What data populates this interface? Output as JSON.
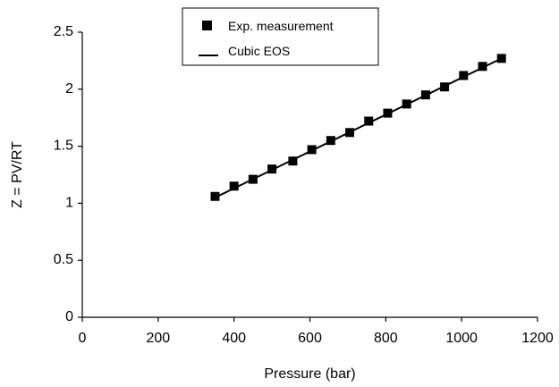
{
  "chart_data": {
    "type": "scatter",
    "xlabel": "Pressure (bar)",
    "ylabel": "Z = PV/RT",
    "xlim": [
      0,
      1200
    ],
    "ylim": [
      0,
      2.5
    ],
    "xticks": [
      0,
      200,
      400,
      600,
      800,
      1000,
      1200
    ],
    "yticks": [
      0,
      0.5,
      1,
      1.5,
      2,
      2.5
    ],
    "xtick_labels": [
      "0",
      "200",
      "400",
      "600",
      "800",
      "1000",
      "1200"
    ],
    "ytick_labels": [
      "0",
      "0.5",
      "1",
      "1.5",
      "2",
      "2.5"
    ],
    "grid": false,
    "legend_position": "top-center",
    "series": [
      {
        "name": "Exp. measurement",
        "kind": "markers",
        "marker": "square",
        "color": "#000000",
        "x": [
          350,
          400,
          450,
          500,
          555,
          605,
          655,
          705,
          755,
          805,
          855,
          905,
          955,
          1005,
          1055,
          1105
        ],
        "y": [
          1.06,
          1.15,
          1.21,
          1.3,
          1.37,
          1.47,
          1.55,
          1.62,
          1.72,
          1.79,
          1.87,
          1.95,
          2.02,
          2.12,
          2.2,
          2.27
        ]
      },
      {
        "name": "Cubic EOS",
        "kind": "line",
        "color": "#000000",
        "x": [
          350,
          1105
        ],
        "y": [
          1.05,
          2.27
        ]
      }
    ]
  }
}
